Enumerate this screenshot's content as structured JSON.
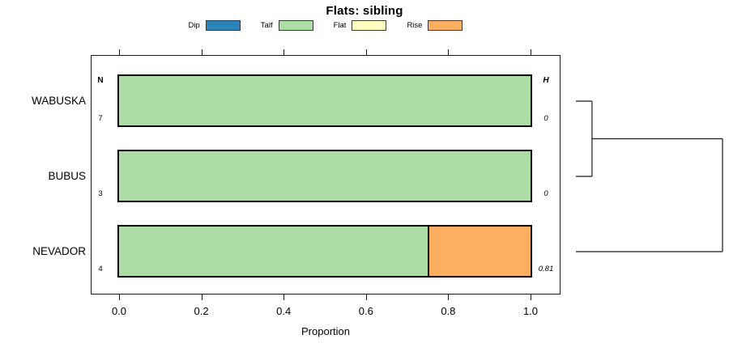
{
  "title": "Flats: sibling",
  "columns": {
    "n_header": "N",
    "h_header": "H"
  },
  "legend": {
    "items": [
      {
        "label": "Dip",
        "color": "#2b83ba"
      },
      {
        "label": "Talf",
        "color": "#abdda4"
      },
      {
        "label": "Flat",
        "color": "#ffffbf"
      },
      {
        "label": "Rise",
        "color": "#fdae61"
      }
    ]
  },
  "chart_data": {
    "type": "bar",
    "orientation": "horizontal",
    "stacked": true,
    "title": "Flats: sibling",
    "xlabel": "Proportion",
    "xlim": [
      0,
      1
    ],
    "x_ticks": [
      "0.0",
      "0.2",
      "0.4",
      "0.6",
      "0.8",
      "1.0"
    ],
    "x_tick_values": [
      0.0,
      0.2,
      0.4,
      0.6,
      0.8,
      1.0
    ],
    "axis_sides": [
      "bottom",
      "top"
    ],
    "grid": false,
    "legend_position": "top",
    "categories": [
      "WABUSKA",
      "BUBUS",
      "NEVADOR"
    ],
    "series": [
      {
        "name": "Dip",
        "color": "#2b83ba",
        "values": [
          0,
          0,
          0
        ]
      },
      {
        "name": "Talf",
        "color": "#abdda4",
        "values": [
          1.0,
          1.0,
          0.75
        ]
      },
      {
        "name": "Flat",
        "color": "#ffffbf",
        "values": [
          0,
          0,
          0
        ]
      },
      {
        "name": "Rise",
        "color": "#fdae61",
        "values": [
          0,
          0,
          0.25
        ]
      }
    ],
    "n_values": [
      "7",
      "3",
      "4"
    ],
    "h_values": [
      "0",
      "0",
      "0.81"
    ],
    "dendrogram": {
      "leaves": [
        "WABUSKA",
        "BUBUS",
        "NEVADOR"
      ],
      "merges": [
        {
          "members": [
            "WABUSKA",
            "BUBUS"
          ],
          "height_frac": 0.11
        },
        {
          "members": [
            "WABUSKA+BUBUS",
            "NEVADOR"
          ],
          "height_frac": 1.0
        }
      ]
    }
  }
}
